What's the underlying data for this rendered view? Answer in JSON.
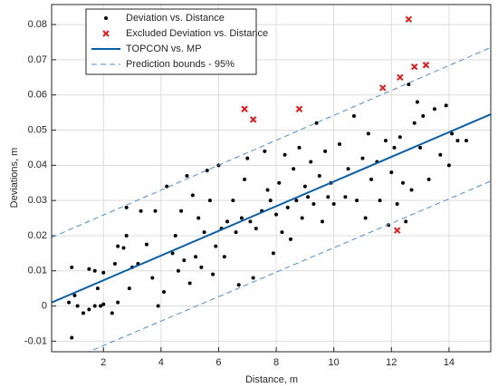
{
  "chart_data": {
    "type": "scatter",
    "x_label": "Distance, m",
    "y_label": "Deviations, m",
    "xlim": [
      0.2,
      15.45
    ],
    "ylim": [
      -0.013,
      0.0857
    ],
    "xticks": [
      2,
      4,
      6,
      8,
      10,
      12,
      14
    ],
    "yticks": [
      -0.01,
      0,
      0.01,
      0.02,
      0.03,
      0.04,
      0.05,
      0.06,
      0.07,
      0.08
    ],
    "grid": true,
    "legend": "upper left",
    "series": [
      {
        "name": "Deviation vs. Distance",
        "color": "#000000",
        "marker": "dot",
        "x": [
          0.8,
          0.9,
          0.9,
          1.0,
          1.1,
          1.3,
          1.5,
          1.5,
          1.7,
          1.7,
          1.8,
          1.9,
          2.0,
          2.0,
          2.3,
          2.4,
          2.5,
          2.5,
          2.7,
          2.8,
          2.8,
          2.9,
          3.0,
          3.2,
          3.3,
          3.5,
          3.7,
          3.8,
          3.9,
          4.1,
          4.2,
          4.4,
          4.5,
          4.6,
          4.7,
          4.8,
          4.9,
          5.0,
          5.1,
          5.2,
          5.3,
          5.4,
          5.5,
          5.6,
          5.7,
          5.8,
          5.9,
          6.0,
          6.1,
          6.2,
          6.3,
          6.5,
          6.6,
          6.7,
          6.8,
          6.9,
          7.0,
          7.1,
          7.2,
          7.3,
          7.5,
          7.6,
          7.7,
          7.8,
          7.9,
          8.0,
          8.1,
          8.2,
          8.3,
          8.4,
          8.5,
          8.6,
          8.7,
          8.8,
          8.9,
          9.0,
          9.1,
          9.2,
          9.3,
          9.4,
          9.5,
          9.6,
          9.7,
          9.8,
          9.9,
          10.0,
          10.2,
          10.4,
          10.5,
          10.7,
          10.8,
          11.0,
          11.1,
          11.2,
          11.3,
          11.5,
          11.6,
          11.8,
          11.9,
          12.0,
          12.1,
          12.2,
          12.3,
          12.4,
          12.5,
          12.6,
          12.7,
          12.8,
          12.9,
          13.0,
          13.1,
          13.3,
          13.5,
          13.7,
          14.0,
          14.1,
          14.3,
          14.6,
          13.9
        ],
        "values": [
          0.001,
          -0.009,
          0.011,
          0.003,
          0.0,
          -0.002,
          -0.001,
          0.0105,
          0.01,
          0.0,
          0.005,
          0.0,
          0.0095,
          0.0005,
          -0.002,
          0.012,
          0.017,
          0.001,
          0.0165,
          0.028,
          0.02,
          0.005,
          0.011,
          0.012,
          0.027,
          0.0175,
          0.008,
          0.027,
          0.0,
          0.004,
          0.034,
          0.015,
          0.02,
          0.01,
          0.027,
          0.013,
          0.037,
          0.0065,
          0.0315,
          0.014,
          0.025,
          0.011,
          0.021,
          0.0385,
          0.03,
          0.009,
          0.017,
          0.04,
          0.022,
          0.014,
          0.024,
          0.03,
          0.021,
          0.006,
          0.025,
          0.036,
          0.042,
          0.024,
          0.008,
          0.022,
          0.027,
          0.044,
          0.033,
          0.03,
          0.015,
          0.026,
          0.035,
          0.021,
          0.043,
          0.028,
          0.019,
          0.039,
          0.03,
          0.045,
          0.025,
          0.034,
          0.031,
          0.041,
          0.029,
          0.052,
          0.037,
          0.024,
          0.044,
          0.031,
          0.035,
          0.029,
          0.046,
          0.031,
          0.039,
          0.054,
          0.03,
          0.042,
          0.025,
          0.049,
          0.036,
          0.041,
          0.03,
          0.047,
          0.023,
          0.038,
          0.045,
          0.029,
          0.048,
          0.035,
          0.024,
          0.063,
          0.033,
          0.052,
          0.058,
          0.045,
          0.054,
          0.036,
          0.056,
          0.043,
          0.04,
          0.049,
          0.047,
          0.047,
          0.057
        ]
      },
      {
        "name": "Excluded Deviation vs. Distance",
        "color": "#e8191c",
        "marker": "x",
        "x": [
          6.9,
          7.2,
          8.8,
          11.7,
          12.3,
          12.6,
          12.8,
          13.2,
          12.2
        ],
        "values": [
          0.056,
          0.053,
          0.056,
          0.062,
          0.065,
          0.0815,
          0.068,
          0.0685,
          0.0215
        ]
      },
      {
        "name": "TOPCON vs. MP",
        "color": "#0a5ea8",
        "line_style": "solid",
        "x": [
          0.2,
          15.45
        ],
        "values": [
          0.001,
          0.0545
        ]
      },
      {
        "name": "Prediction bounds - 95%",
        "color": "#4a90d0",
        "line_style": "dashed",
        "x": [
          0.2,
          15.45,
          null,
          0.2,
          15.45
        ],
        "values": [
          0.0195,
          0.0735,
          null,
          -0.0175,
          0.0355
        ]
      }
    ]
  }
}
